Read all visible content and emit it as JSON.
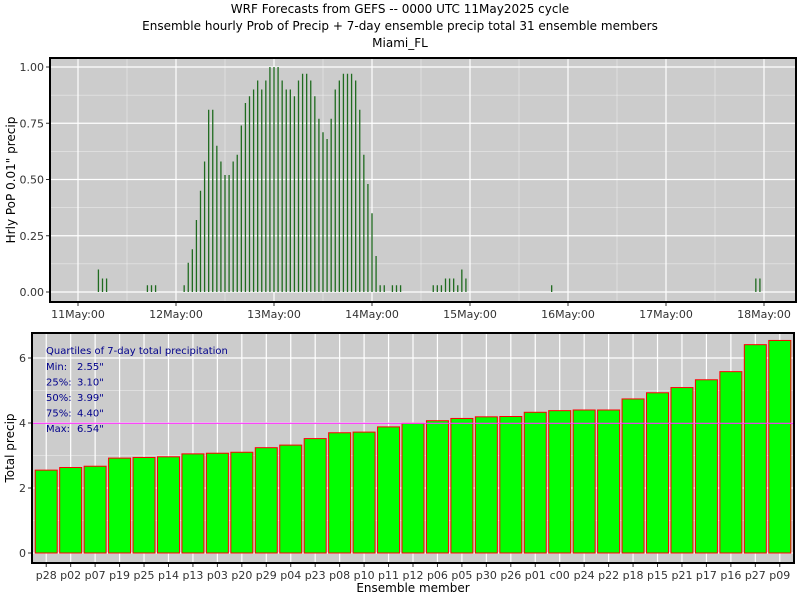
{
  "header": {
    "line1": "WRF Forecasts from GEFS --  0000 UTC 11May2025  cycle",
    "line2": "Ensemble hourly Prob of Precip + 7-day ensemble precip total  31 ensemble members",
    "line3": "Miami_FL"
  },
  "colors": {
    "panel_bg": "#cccccc",
    "grid": "#ffffff",
    "pop_bar": "#1f6b1f",
    "total_bar_fill": "#00ff00",
    "total_bar_edge": "#ff0000",
    "median_line": "#ff33ff",
    "quartile_text": "#00008b"
  },
  "chart_data": [
    {
      "type": "bar",
      "ylabel": "Hrly PoP 0.01\" precip",
      "ylim": [
        0,
        1
      ],
      "yticks": [
        0.0,
        0.25,
        0.5,
        0.75,
        1.0
      ],
      "ytick_labels": [
        "0.00",
        "0.25",
        "0.50",
        "0.75",
        "1.00"
      ],
      "xlim_hours": [
        0,
        168
      ],
      "xticks": [
        {
          "hour": 0,
          "label": "11May:00"
        },
        {
          "hour": 24,
          "label": "12May:00"
        },
        {
          "hour": 48,
          "label": "13May:00"
        },
        {
          "hour": 72,
          "label": "14May:00"
        },
        {
          "hour": 96,
          "label": "15May:00"
        },
        {
          "hour": 120,
          "label": "16May:00"
        },
        {
          "hour": 144,
          "label": "17May:00"
        },
        {
          "hour": 168,
          "label": "18May:00"
        }
      ],
      "bars": [
        {
          "hour": 5,
          "p": 0.1
        },
        {
          "hour": 6,
          "p": 0.06
        },
        {
          "hour": 7,
          "p": 0.06
        },
        {
          "hour": 17,
          "p": 0.03
        },
        {
          "hour": 18,
          "p": 0.03
        },
        {
          "hour": 19,
          "p": 0.03
        },
        {
          "hour": 26,
          "p": 0.03
        },
        {
          "hour": 27,
          "p": 0.13
        },
        {
          "hour": 28,
          "p": 0.19
        },
        {
          "hour": 29,
          "p": 0.32
        },
        {
          "hour": 30,
          "p": 0.45
        },
        {
          "hour": 31,
          "p": 0.58
        },
        {
          "hour": 32,
          "p": 0.81
        },
        {
          "hour": 33,
          "p": 0.81
        },
        {
          "hour": 34,
          "p": 0.65
        },
        {
          "hour": 35,
          "p": 0.58
        },
        {
          "hour": 36,
          "p": 0.52
        },
        {
          "hour": 37,
          "p": 0.52
        },
        {
          "hour": 38,
          "p": 0.58
        },
        {
          "hour": 39,
          "p": 0.61
        },
        {
          "hour": 40,
          "p": 0.74
        },
        {
          "hour": 41,
          "p": 0.84
        },
        {
          "hour": 42,
          "p": 0.87
        },
        {
          "hour": 43,
          "p": 0.9
        },
        {
          "hour": 44,
          "p": 0.94
        },
        {
          "hour": 45,
          "p": 0.9
        },
        {
          "hour": 46,
          "p": 0.94
        },
        {
          "hour": 47,
          "p": 1.0
        },
        {
          "hour": 48,
          "p": 1.0
        },
        {
          "hour": 49,
          "p": 1.0
        },
        {
          "hour": 50,
          "p": 0.94
        },
        {
          "hour": 51,
          "p": 0.9
        },
        {
          "hour": 52,
          "p": 0.9
        },
        {
          "hour": 53,
          "p": 0.87
        },
        {
          "hour": 54,
          "p": 0.94
        },
        {
          "hour": 55,
          "p": 0.97
        },
        {
          "hour": 56,
          "p": 0.97
        },
        {
          "hour": 57,
          "p": 0.94
        },
        {
          "hour": 58,
          "p": 0.87
        },
        {
          "hour": 59,
          "p": 0.77
        },
        {
          "hour": 60,
          "p": 0.71
        },
        {
          "hour": 61,
          "p": 0.68
        },
        {
          "hour": 62,
          "p": 0.77
        },
        {
          "hour": 63,
          "p": 0.9
        },
        {
          "hour": 64,
          "p": 0.94
        },
        {
          "hour": 65,
          "p": 0.97
        },
        {
          "hour": 66,
          "p": 0.97
        },
        {
          "hour": 67,
          "p": 0.97
        },
        {
          "hour": 68,
          "p": 0.94
        },
        {
          "hour": 69,
          "p": 0.81
        },
        {
          "hour": 70,
          "p": 0.61
        },
        {
          "hour": 71,
          "p": 0.48
        },
        {
          "hour": 72,
          "p": 0.35
        },
        {
          "hour": 73,
          "p": 0.16
        },
        {
          "hour": 74,
          "p": 0.03
        },
        {
          "hour": 75,
          "p": 0.03
        },
        {
          "hour": 77,
          "p": 0.03
        },
        {
          "hour": 78,
          "p": 0.03
        },
        {
          "hour": 79,
          "p": 0.03
        },
        {
          "hour": 87,
          "p": 0.03
        },
        {
          "hour": 88,
          "p": 0.03
        },
        {
          "hour": 89,
          "p": 0.03
        },
        {
          "hour": 90,
          "p": 0.06
        },
        {
          "hour": 91,
          "p": 0.06
        },
        {
          "hour": 92,
          "p": 0.06
        },
        {
          "hour": 93,
          "p": 0.03
        },
        {
          "hour": 94,
          "p": 0.1
        },
        {
          "hour": 95,
          "p": 0.06
        },
        {
          "hour": 116,
          "p": 0.03
        },
        {
          "hour": 166,
          "p": 0.06
        },
        {
          "hour": 167,
          "p": 0.06
        }
      ]
    },
    {
      "type": "bar",
      "xlabel": "Ensemble member",
      "ylabel": "Total precip",
      "ylim": [
        0,
        6.8
      ],
      "yticks": [
        0,
        2,
        4,
        6
      ],
      "ytick_labels": [
        "0",
        "2",
        "4",
        "6"
      ],
      "median_line": 3.99,
      "categories": [
        "p28",
        "p02",
        "p07",
        "p19",
        "p25",
        "p14",
        "p13",
        "p03",
        "p20",
        "p29",
        "p04",
        "p23",
        "p08",
        "p10",
        "p11",
        "p12",
        "p06",
        "p05",
        "p30",
        "p26",
        "p01",
        "c00",
        "p24",
        "p22",
        "p18",
        "p15",
        "p21",
        "p17",
        "p16",
        "p27",
        "p09"
      ],
      "values": [
        2.55,
        2.63,
        2.67,
        2.92,
        2.94,
        2.96,
        3.05,
        3.07,
        3.1,
        3.24,
        3.32,
        3.52,
        3.7,
        3.72,
        3.88,
        3.99,
        4.07,
        4.14,
        4.19,
        4.2,
        4.33,
        4.38,
        4.4,
        4.4,
        4.74,
        4.93,
        5.09,
        5.33,
        5.58,
        6.41,
        6.54
      ],
      "quartiles": {
        "title": "Quartiles of 7-day total precipitation",
        "rows": [
          {
            "label": "Min:",
            "value": "2.55\""
          },
          {
            "label": "25%:",
            "value": "3.10\""
          },
          {
            "label": "50%:",
            "value": "3.99\""
          },
          {
            "label": "75%:",
            "value": "4.40\""
          },
          {
            "label": "Max:",
            "value": "6.54\""
          }
        ]
      }
    }
  ]
}
